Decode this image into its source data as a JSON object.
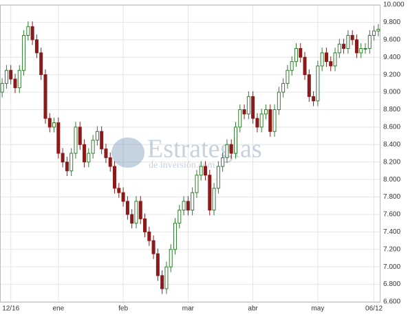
{
  "chart_data": {
    "type": "candlestick",
    "watermark": "Estrategias",
    "watermark_sub": "de inversión.com",
    "up_color": "#2e7d2e",
    "down_color": "#8b1a1a",
    "grid": true,
    "categories": [
      null,
      null,
      "12/16",
      null,
      null,
      null,
      null,
      null,
      null,
      null,
      null,
      null,
      null,
      "ene",
      null,
      null,
      null,
      null,
      null,
      null,
      null,
      null,
      null,
      null,
      null,
      null,
      null,
      null,
      "feb",
      null,
      null,
      null,
      null,
      null,
      null,
      null,
      null,
      null,
      null,
      null,
      null,
      null,
      null,
      "mar",
      null,
      null,
      null,
      null,
      null,
      null,
      null,
      null,
      null,
      null,
      null,
      null,
      null,
      null,
      "abr",
      null,
      null,
      null,
      null,
      null,
      null,
      null,
      null,
      null,
      null,
      null,
      null,
      null,
      null,
      "may",
      null,
      null,
      null,
      null,
      null,
      null,
      null,
      null,
      null,
      null,
      null,
      null,
      "06/12",
      null
    ],
    "open": [
      9000,
      9100,
      9250,
      9150,
      9050,
      9250,
      9650,
      9750,
      9600,
      9450,
      9200,
      8700,
      8600,
      8650,
      8300,
      8200,
      8100,
      8300,
      8600,
      8400,
      8200,
      8300,
      8450,
      8550,
      8350,
      8250,
      8150,
      7900,
      7850,
      7750,
      7600,
      7500,
      7750,
      7550,
      7400,
      7300,
      7150,
      6900,
      6750,
      7000,
      7200,
      7500,
      7650,
      7750,
      7650,
      7850,
      8050,
      8150,
      8050,
      7650,
      7900,
      8150,
      8250,
      8400,
      8300,
      8600,
      8800,
      8750,
      8950,
      8700,
      8600,
      8750,
      8800,
      8550,
      8800,
      9000,
      9100,
      9250,
      9350,
      9500,
      9400,
      9200,
      8950,
      8900,
      9300,
      9450,
      9350,
      9300,
      9450,
      9550,
      9500,
      9650,
      9600,
      9450,
      9500,
      9500,
      9650,
      9700
    ],
    "high": [
      9160,
      9310,
      9310,
      9210,
      9310,
      9710,
      9810,
      9810,
      9660,
      9510,
      9260,
      8760,
      8710,
      8710,
      8360,
      8260,
      8360,
      8660,
      8660,
      8460,
      8360,
      8510,
      8610,
      8610,
      8410,
      8310,
      8210,
      7960,
      7910,
      7810,
      7660,
      7810,
      7810,
      7610,
      7460,
      7360,
      7210,
      6960,
      7060,
      7260,
      7560,
      7710,
      7810,
      7810,
      7910,
      8110,
      8210,
      8210,
      8110,
      7960,
      8210,
      8310,
      8460,
      8460,
      8660,
      8860,
      8860,
      9010,
      9010,
      8760,
      8810,
      8860,
      8860,
      8860,
      9060,
      9160,
      9310,
      9410,
      9560,
      9560,
      9460,
      9260,
      9010,
      9360,
      9510,
      9510,
      9410,
      9510,
      9610,
      9610,
      9710,
      9710,
      9660,
      9560,
      9560,
      9710,
      9760,
      9780
    ],
    "low": [
      8940,
      9040,
      9090,
      8990,
      8990,
      9190,
      9590,
      9540,
      9390,
      9140,
      8640,
      8540,
      8540,
      8240,
      8140,
      8040,
      8040,
      8240,
      8340,
      8140,
      8140,
      8240,
      8390,
      8290,
      8190,
      8090,
      7840,
      7790,
      7690,
      7540,
      7440,
      7440,
      7490,
      7340,
      7240,
      7090,
      6840,
      6690,
      6690,
      6940,
      7140,
      7440,
      7590,
      7590,
      7590,
      7790,
      7990,
      7990,
      7590,
      7590,
      7840,
      8090,
      8190,
      8240,
      8240,
      8540,
      8690,
      8690,
      8640,
      8540,
      8540,
      8690,
      8490,
      8490,
      8740,
      8940,
      9040,
      9190,
      9290,
      9340,
      9140,
      8890,
      8840,
      8840,
      9240,
      9290,
      9240,
      9240,
      9390,
      9440,
      9440,
      9540,
      9390,
      9390,
      9440,
      9440,
      9590,
      9640
    ],
    "close": [
      9100,
      9250,
      9150,
      9050,
      9250,
      9650,
      9750,
      9600,
      9450,
      9200,
      8700,
      8600,
      8650,
      8300,
      8200,
      8100,
      8300,
      8600,
      8400,
      8200,
      8300,
      8450,
      8550,
      8350,
      8250,
      8150,
      7900,
      7850,
      7750,
      7600,
      7500,
      7750,
      7550,
      7400,
      7300,
      7150,
      6900,
      6750,
      7000,
      7200,
      7500,
      7650,
      7750,
      7650,
      7850,
      8050,
      8150,
      8050,
      7650,
      7900,
      8150,
      8250,
      8400,
      8300,
      8600,
      8800,
      8750,
      8950,
      8700,
      8600,
      8750,
      8800,
      8550,
      8800,
      9000,
      9100,
      9250,
      9350,
      9500,
      9400,
      9200,
      8950,
      8900,
      9300,
      9450,
      9350,
      9300,
      9450,
      9550,
      9500,
      9650,
      9600,
      9450,
      9500,
      9500,
      9650,
      9700,
      9720
    ],
    "ylim": [
      6600,
      10000
    ],
    "yticks": [
      {
        "value": 6600,
        "label": "6.600"
      },
      {
        "value": 6800,
        "label": "6.800"
      },
      {
        "value": 7000,
        "label": "7.000"
      },
      {
        "value": 7200,
        "label": "7.200"
      },
      {
        "value": 7400,
        "label": "7.400"
      },
      {
        "value": 7600,
        "label": "7.600"
      },
      {
        "value": 7800,
        "label": "7.800"
      },
      {
        "value": 8000,
        "label": "8.000"
      },
      {
        "value": 8200,
        "label": "8.200"
      },
      {
        "value": 8400,
        "label": "8.400"
      },
      {
        "value": 8600,
        "label": "8.600"
      },
      {
        "value": 8800,
        "label": "8.800"
      },
      {
        "value": 9000,
        "label": "9.000"
      },
      {
        "value": 9200,
        "label": "9.200"
      },
      {
        "value": 9400,
        "label": "9.400"
      },
      {
        "value": 9600,
        "label": "9.600"
      },
      {
        "value": 9800,
        "label": "9.800"
      },
      {
        "value": 10000,
        "label": "10.000"
      }
    ]
  }
}
